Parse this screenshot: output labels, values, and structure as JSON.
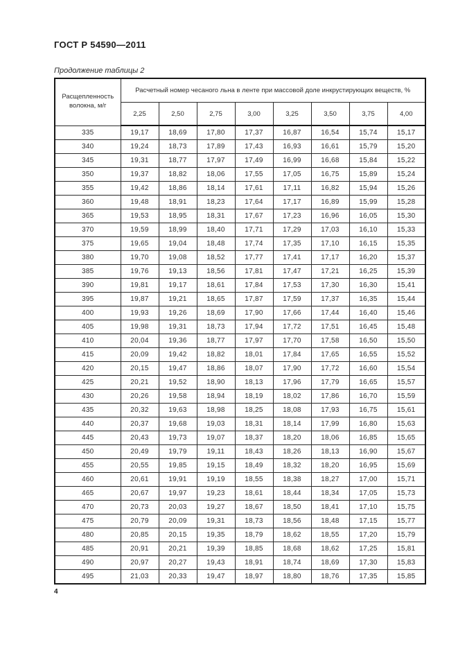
{
  "page": {
    "doc_number": "ГОСТ Р 54590—2011",
    "table_caption": "Продолжение таблицы 2",
    "page_number": "4"
  },
  "table": {
    "col1_header": "Расщепленность волокна, м/г",
    "span_header": "Расчетный номер чесаного льна в ленте при массовой доле инкрустирующих веществ, %",
    "col_headers": [
      "2,25",
      "2,50",
      "2,75",
      "3,00",
      "3,25",
      "3,50",
      "3,75",
      "4,00"
    ],
    "rows": [
      {
        "label": "335",
        "values": [
          "19,17",
          "18,69",
          "17,80",
          "17,37",
          "16,87",
          "16,54",
          "15,74",
          "15,17"
        ]
      },
      {
        "label": "340",
        "values": [
          "19,24",
          "18,73",
          "17,89",
          "17,43",
          "16,93",
          "16,61",
          "15,79",
          "15,20"
        ]
      },
      {
        "label": "345",
        "values": [
          "19,31",
          "18,77",
          "17,97",
          "17,49",
          "16,99",
          "16,68",
          "15,84",
          "15,22"
        ]
      },
      {
        "label": "350",
        "values": [
          "19,37",
          "18,82",
          "18,06",
          "17,55",
          "17,05",
          "16,75",
          "15,89",
          "15,24"
        ]
      },
      {
        "label": "355",
        "values": [
          "19,42",
          "18,86",
          "18,14",
          "17,61",
          "17,11",
          "16,82",
          "15,94",
          "15,26"
        ]
      },
      {
        "label": "360",
        "values": [
          "19,48",
          "18,91",
          "18,23",
          "17,64",
          "17,17",
          "16,89",
          "15,99",
          "15,28"
        ]
      },
      {
        "label": "365",
        "values": [
          "19,53",
          "18,95",
          "18,31",
          "17,67",
          "17,23",
          "16,96",
          "16,05",
          "15,30"
        ]
      },
      {
        "label": "370",
        "values": [
          "19,59",
          "18,99",
          "18,40",
          "17,71",
          "17,29",
          "17,03",
          "16,10",
          "15,33"
        ]
      },
      {
        "label": "375",
        "values": [
          "19,65",
          "19,04",
          "18,48",
          "17,74",
          "17,35",
          "17,10",
          "16,15",
          "15,35"
        ]
      },
      {
        "label": "380",
        "values": [
          "19,70",
          "19,08",
          "18,52",
          "17,77",
          "17,41",
          "17,17",
          "16,20",
          "15,37"
        ]
      },
      {
        "label": "385",
        "values": [
          "19,76",
          "19,13",
          "18,56",
          "17,81",
          "17,47",
          "17,21",
          "16,25",
          "15,39"
        ]
      },
      {
        "label": "390",
        "values": [
          "19,81",
          "19,17",
          "18,61",
          "17,84",
          "17,53",
          "17,30",
          "16,30",
          "15,41"
        ]
      },
      {
        "label": "395",
        "values": [
          "19,87",
          "19,21",
          "18,65",
          "17,87",
          "17,59",
          "17,37",
          "16,35",
          "15,44"
        ]
      },
      {
        "label": "400",
        "values": [
          "19,93",
          "19,26",
          "18,69",
          "17,90",
          "17,66",
          "17,44",
          "16,40",
          "15,46"
        ]
      },
      {
        "label": "405",
        "values": [
          "19,98",
          "19,31",
          "18,73",
          "17,94",
          "17,72",
          "17,51",
          "16,45",
          "15,48"
        ]
      },
      {
        "label": "410",
        "values": [
          "20,04",
          "19,36",
          "18,77",
          "17,97",
          "17,70",
          "17,58",
          "16,50",
          "15,50"
        ]
      },
      {
        "label": "415",
        "values": [
          "20,09",
          "19,42",
          "18,82",
          "18,01",
          "17,84",
          "17,65",
          "16,55",
          "15,52"
        ]
      },
      {
        "label": "420",
        "values": [
          "20,15",
          "19,47",
          "18,86",
          "18,07",
          "17,90",
          "17,72",
          "16,60",
          "15,54"
        ]
      },
      {
        "label": "425",
        "values": [
          "20,21",
          "19,52",
          "18,90",
          "18,13",
          "17,96",
          "17,79",
          "16,65",
          "15,57"
        ]
      },
      {
        "label": "430",
        "values": [
          "20,26",
          "19,58",
          "18,94",
          "18,19",
          "18,02",
          "17,86",
          "16,70",
          "15,59"
        ]
      },
      {
        "label": "435",
        "values": [
          "20,32",
          "19,63",
          "18,98",
          "18,25",
          "18,08",
          "17,93",
          "16,75",
          "15,61"
        ]
      },
      {
        "label": "440",
        "values": [
          "20,37",
          "19,68",
          "19,03",
          "18,31",
          "18,14",
          "17,99",
          "16,80",
          "15,63"
        ]
      },
      {
        "label": "445",
        "values": [
          "20,43",
          "19,73",
          "19,07",
          "18,37",
          "18,20",
          "18,06",
          "16,85",
          "15,65"
        ]
      },
      {
        "label": "450",
        "values": [
          "20,49",
          "19,79",
          "19,11",
          "18,43",
          "18,26",
          "18,13",
          "16,90",
          "15,67"
        ]
      },
      {
        "label": "455",
        "values": [
          "20,55",
          "19,85",
          "19,15",
          "18,49",
          "18,32",
          "18,20",
          "16,95",
          "15,69"
        ]
      },
      {
        "label": "460",
        "values": [
          "20,61",
          "19,91",
          "19,19",
          "18,55",
          "18,38",
          "18,27",
          "17,00",
          "15,71"
        ]
      },
      {
        "label": "465",
        "values": [
          "20,67",
          "19,97",
          "19,23",
          "18,61",
          "18,44",
          "18,34",
          "17,05",
          "15,73"
        ]
      },
      {
        "label": "470",
        "values": [
          "20,73",
          "20,03",
          "19,27",
          "18,67",
          "18,50",
          "18,41",
          "17,10",
          "15,75"
        ]
      },
      {
        "label": "475",
        "values": [
          "20,79",
          "20,09",
          "19,31",
          "18,73",
          "18,56",
          "18,48",
          "17,15",
          "15,77"
        ]
      },
      {
        "label": "480",
        "values": [
          "20,85",
          "20,15",
          "19,35",
          "18,79",
          "18,62",
          "18,55",
          "17,20",
          "15,79"
        ]
      },
      {
        "label": "485",
        "values": [
          "20,91",
          "20,21",
          "19,39",
          "18,85",
          "18,68",
          "18,62",
          "17,25",
          "15,81"
        ]
      },
      {
        "label": "490",
        "values": [
          "20,97",
          "20,27",
          "19,43",
          "18,91",
          "18,74",
          "18,69",
          "17,30",
          "15,83"
        ]
      },
      {
        "label": "495",
        "values": [
          "21,03",
          "20,33",
          "19,47",
          "18,97",
          "18,80",
          "18,76",
          "17,35",
          "15,85"
        ]
      }
    ]
  }
}
